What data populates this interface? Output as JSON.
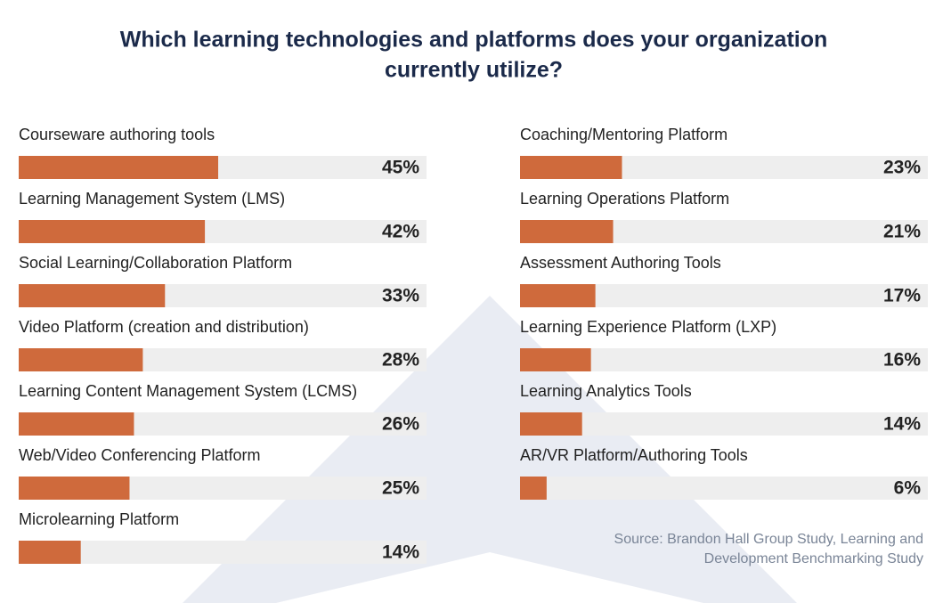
{
  "title": [
    "Which learning technologies and platforms does your organization",
    "currently utilize?"
  ],
  "source": [
    "Source: Brandon Hall Group Study, Learning and",
    "Development Benchmarking Study"
  ],
  "chart_data": [
    {
      "type": "bar",
      "orientation": "horizontal",
      "color": "#cf6a3c",
      "track_color": "#eeeeee",
      "xlim": [
        0,
        92
      ],
      "categories": [
        "Courseware authoring tools",
        "Learning Management System (LMS)",
        "Social Learning/Collaboration Platform",
        "Video Platform (creation and distribution)",
        "Learning Content Management System (LCMS)",
        "Web/Video Conferencing Platform",
        "Microlearning Platform"
      ],
      "values": [
        45,
        42,
        33,
        28,
        26,
        25,
        14
      ],
      "value_labels": [
        "45%",
        "42%",
        "33%",
        "28%",
        "26%",
        "25%",
        "14%"
      ]
    },
    {
      "type": "bar",
      "orientation": "horizontal",
      "color": "#cf6a3c",
      "track_color": "#eeeeee",
      "xlim": [
        0,
        92
      ],
      "categories": [
        "Coaching/Mentoring Platform",
        "Learning Operations Platform",
        "Assessment Authoring Tools",
        "Learning Experience Platform (LXP)",
        "Learning Analytics Tools",
        "AR/VR Platform/Authoring Tools"
      ],
      "values": [
        23,
        21,
        17,
        16,
        14,
        6
      ],
      "value_labels": [
        "23%",
        "21%",
        "17%",
        "16%",
        "14%",
        "6%"
      ]
    }
  ]
}
